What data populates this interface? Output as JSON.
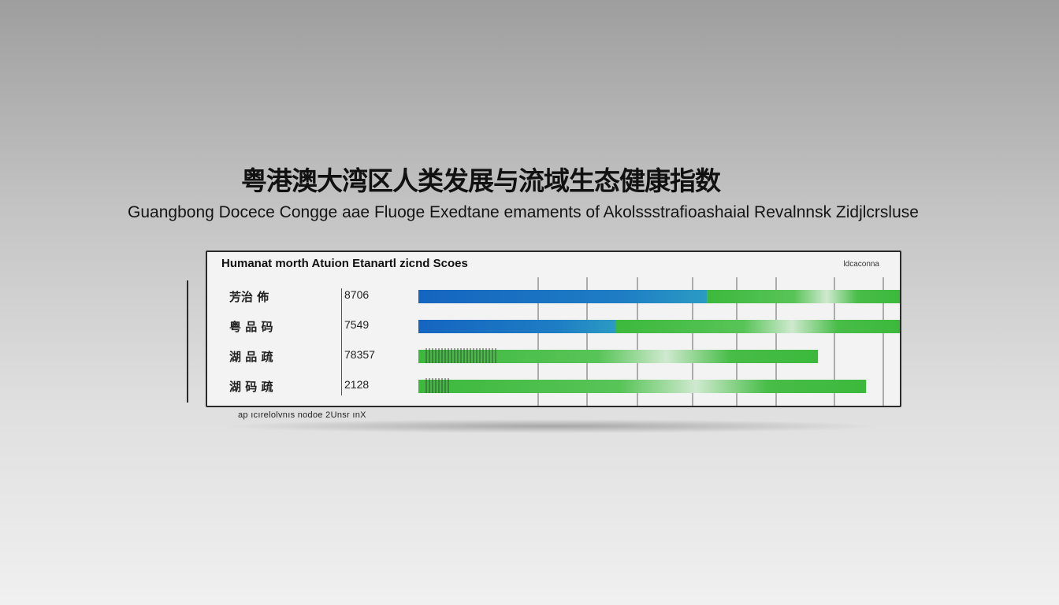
{
  "titles": {
    "main_zh": "粤港澳大湾区人类发展与流域生态健康指数",
    "main_en": "Guangbong Docece Congge aae Fluoge Exedtane emaments of Akolssstrafioashaial Revalnnsk Zidjlcrsluse"
  },
  "panel": {
    "title": "Humanat morth Atuion Etanartl zicnd Scoes",
    "tag": "ldcaconna",
    "footnote": "ap ıcırelolvnıs nodoe 2Unsr ınX"
  },
  "colors": {
    "blue": "#1565c0",
    "teal": "#2b9bc4",
    "green": "#3cb93c",
    "frame": "#2a2a2a"
  },
  "chart_data": {
    "type": "bar",
    "title": "Humanat morth Atuion Etanartl zicnd Scoes",
    "orientation": "horizontal",
    "stacked": true,
    "categories": [
      "芳治 佈",
      "粤 品 码",
      "湖 品 疏",
      "湖 码 疏"
    ],
    "values_printed": [
      "8706",
      "7549",
      "78357",
      "2128"
    ],
    "series": [
      {
        "values": [
          0.6,
          0.41,
          0.0,
          0.0
        ]
      },
      {
        "values": [
          0.4,
          0.59,
          0.83,
          0.93
        ]
      }
    ],
    "xlim": [
      0,
      1
    ],
    "grid": true,
    "legend": "none"
  }
}
